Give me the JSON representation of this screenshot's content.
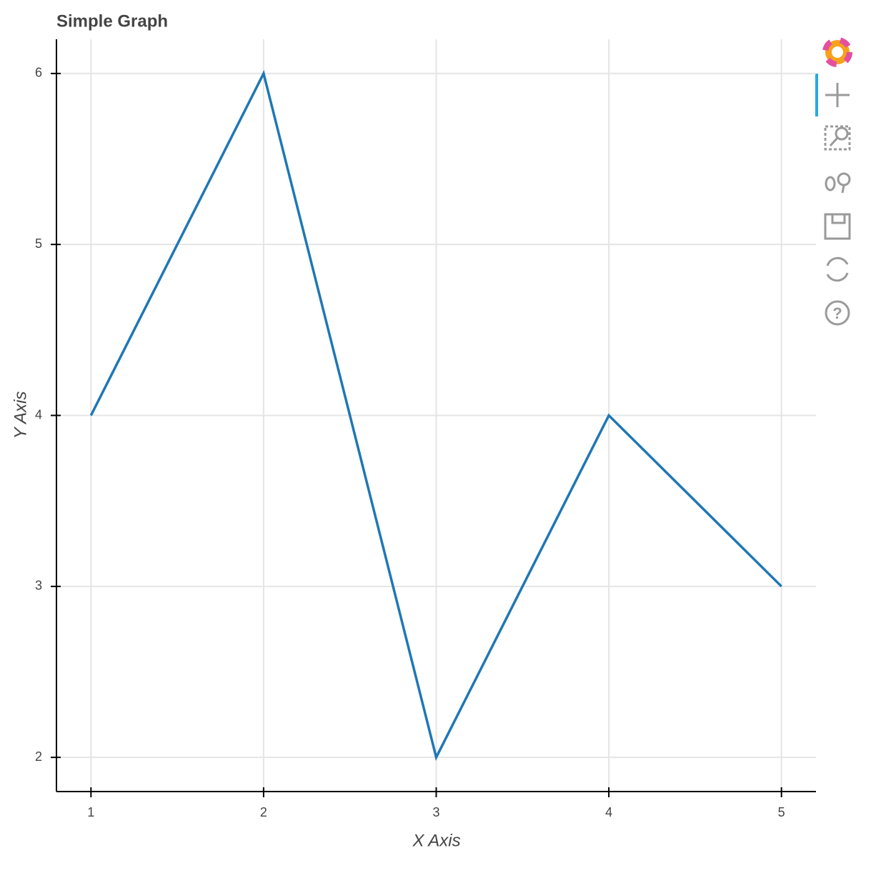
{
  "chart_data": {
    "type": "line",
    "title": "Simple Graph",
    "x_label": "X Axis",
    "y_label": "Y Axis",
    "x": [
      1,
      2,
      3,
      4,
      5
    ],
    "series": [
      {
        "values": [
          4,
          6,
          2,
          4,
          3
        ],
        "color": "#1f77b4"
      }
    ],
    "xlim": [
      0.8,
      5.2
    ],
    "ylim": [
      1.8,
      6.2
    ],
    "xticks": [
      1,
      2,
      3,
      4,
      5
    ],
    "yticks": [
      2,
      3,
      4,
      5,
      6
    ],
    "grid": true
  }
}
